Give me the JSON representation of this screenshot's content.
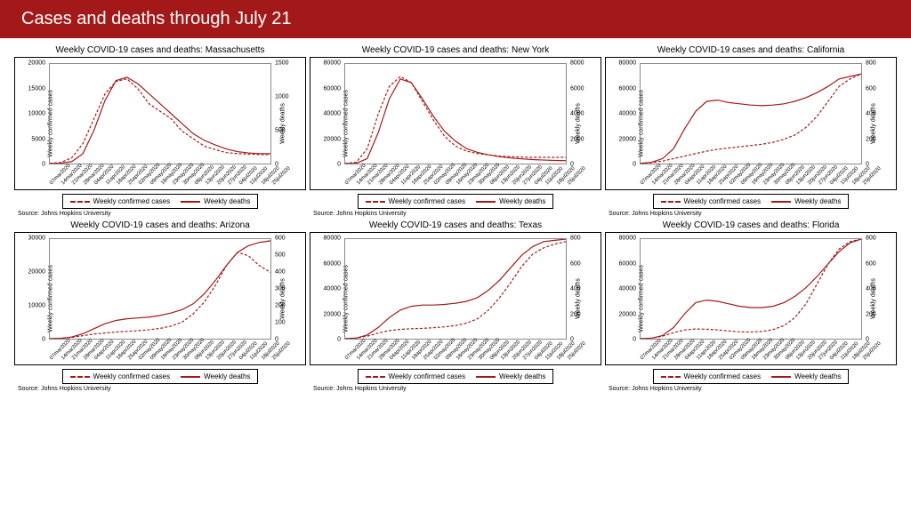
{
  "header": {
    "title": "Cases and deaths through July 21"
  },
  "common": {
    "y1_label": "Weekly confirmed cases",
    "y2_label": "Weekly deaths",
    "legend_cases": "Weekly confirmed cases",
    "legend_deaths": "Weekly deaths",
    "source": "Source: Johns Hopkins University",
    "line_color": "#a31919",
    "grid_color": "#888888",
    "background": "#ffffff",
    "title_fontsize": 10,
    "tick_fontsize": 7,
    "x_labels": [
      "07mar2020",
      "14mar2020",
      "21mar2020",
      "28mar2020",
      "04apr2020",
      "11apr2020",
      "18apr2020",
      "25apr2020",
      "02may2020",
      "09may2020",
      "16may2020",
      "23may2020",
      "30may2020",
      "06jun2020",
      "13jun2020",
      "20jun2020",
      "27jun2020",
      "04jul2020",
      "11jul2020",
      "18jul2020",
      "25jul2020"
    ]
  },
  "panels": [
    {
      "title": "Weekly COVID-19 cases and deaths: Massachusetts",
      "y1_max": 20000,
      "y1_step": 5000,
      "y2_max": 1500,
      "y2_step": 500,
      "cases": [
        50,
        200,
        1200,
        4000,
        9000,
        14000,
        16500,
        17000,
        15000,
        12000,
        10500,
        9000,
        6500,
        5000,
        3500,
        2800,
        2200,
        2000,
        1900,
        1800,
        1800
      ],
      "deaths": [
        0,
        5,
        30,
        150,
        500,
        950,
        1250,
        1300,
        1200,
        1050,
        900,
        750,
        600,
        450,
        350,
        280,
        220,
        180,
        160,
        150,
        150
      ]
    },
    {
      "title": "Weekly COVID-19 cases and deaths: New York",
      "y1_max": 80000,
      "y1_step": 20000,
      "y2_max": 8000,
      "y2_step": 2000,
      "cases": [
        100,
        1000,
        12000,
        40000,
        62000,
        70000,
        65000,
        50000,
        35000,
        22000,
        14000,
        10000,
        8000,
        7000,
        6000,
        5500,
        5200,
        5000,
        5000,
        5000,
        5000
      ],
      "deaths": [
        0,
        20,
        400,
        2500,
        5200,
        6800,
        6500,
        5200,
        3800,
        2600,
        1800,
        1200,
        900,
        700,
        550,
        450,
        380,
        320,
        280,
        250,
        230
      ]
    },
    {
      "title": "Weekly COVID-19 cases and deaths: California",
      "y1_max": 80000,
      "y1_step": 20000,
      "y2_max": 800,
      "y2_step": 200,
      "cases": [
        200,
        800,
        2000,
        4000,
        6000,
        8000,
        10000,
        11500,
        12500,
        13500,
        14500,
        15500,
        17000,
        19500,
        23000,
        29000,
        38000,
        50000,
        62000,
        68000,
        72000
      ],
      "deaths": [
        2,
        10,
        40,
        120,
        280,
        420,
        500,
        510,
        490,
        480,
        470,
        465,
        470,
        480,
        500,
        530,
        570,
        620,
        680,
        700,
        720
      ]
    },
    {
      "title": "Weekly COVID-19 cases and deaths: Arizona",
      "y1_max": 30000,
      "y1_step": 10000,
      "y2_max": 600,
      "y2_step": 100,
      "cases": [
        20,
        100,
        400,
        900,
        1400,
        1700,
        2000,
        2200,
        2400,
        2700,
        3100,
        3800,
        5000,
        7500,
        11000,
        16000,
        22000,
        26000,
        25000,
        22000,
        20000
      ],
      "deaths": [
        0,
        2,
        10,
        30,
        60,
        90,
        110,
        120,
        125,
        130,
        140,
        155,
        175,
        210,
        270,
        350,
        440,
        520,
        560,
        580,
        590
      ]
    },
    {
      "title": "Weekly COVID-19 cases and deaths: Texas",
      "y1_max": 80000,
      "y1_step": 20000,
      "y2_max": 800,
      "y2_step": 200,
      "cases": [
        100,
        500,
        2000,
        4500,
        6500,
        7500,
        8000,
        8300,
        8800,
        9500,
        10500,
        12500,
        16000,
        23000,
        33000,
        45000,
        58000,
        68000,
        73000,
        76000,
        78000
      ],
      "deaths": [
        0,
        5,
        30,
        90,
        170,
        230,
        260,
        270,
        270,
        275,
        285,
        300,
        330,
        390,
        470,
        570,
        670,
        740,
        780,
        790,
        800
      ]
    },
    {
      "title": "Weekly COVID-19 cases and deaths: Florida",
      "y1_max": 80000,
      "y1_step": 20000,
      "y2_max": 800,
      "y2_step": 200,
      "cases": [
        80,
        400,
        2000,
        4800,
        7000,
        7800,
        7600,
        7000,
        6200,
        5500,
        5300,
        5800,
        7200,
        10500,
        17000,
        28000,
        44000,
        60000,
        72000,
        78000,
        80000
      ],
      "deaths": [
        0,
        4,
        25,
        90,
        200,
        290,
        310,
        300,
        280,
        260,
        250,
        250,
        260,
        290,
        340,
        410,
        500,
        600,
        700,
        770,
        800
      ]
    }
  ]
}
